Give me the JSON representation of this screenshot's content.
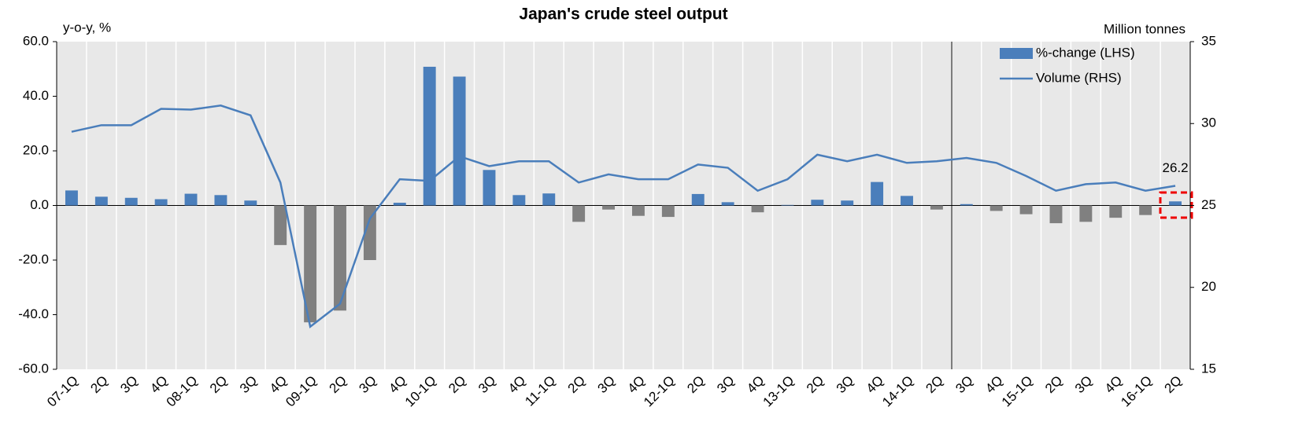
{
  "chart_data": {
    "type": "bar_line",
    "title": "Japan's crude steel output",
    "y_label": "y-o-y, %",
    "y2_label": "Million tonnes",
    "categories": [
      "07-1Q",
      "2Q",
      "3Q",
      "4Q",
      "08-1Q",
      "2Q",
      "3Q",
      "4Q",
      "09-1Q",
      "2Q",
      "3Q",
      "4Q",
      "10-1Q",
      "2Q",
      "3Q",
      "4Q",
      "11-1Q",
      "2Q",
      "3Q",
      "4Q",
      "12-1Q",
      "2Q",
      "3Q",
      "4Q",
      "13-1Q",
      "2Q",
      "3Q",
      "4Q",
      "14-1Q",
      "2Q",
      "3Q",
      "4Q",
      "15-1Q",
      "2Q",
      "3Q",
      "4Q",
      "16-1Q",
      "2Q"
    ],
    "series": [
      {
        "name": "%-change (LHS)",
        "type": "bar",
        "color": "#4a7ebb",
        "negative_color": "#808080",
        "values": [
          5.5,
          3.2,
          2.8,
          2.3,
          4.3,
          3.8,
          1.8,
          -14.5,
          -42.8,
          -38.5,
          -20.0,
          1.0,
          50.8,
          47.2,
          13.0,
          3.8,
          4.4,
          -6.0,
          -1.5,
          -3.8,
          -4.2,
          4.2,
          1.2,
          -2.5,
          0.2,
          2.1,
          1.8,
          8.6,
          3.5,
          -1.5,
          0.5,
          -2.0,
          -3.2,
          -6.5,
          -6.0,
          -4.5,
          -3.5,
          1.5
        ]
      },
      {
        "name": "Volume (RHS)",
        "type": "line",
        "axis": "y2",
        "color": "#4a7ebb",
        "values": [
          29.5,
          29.9,
          29.9,
          30.9,
          30.85,
          31.1,
          30.5,
          26.4,
          17.6,
          19.0,
          24.2,
          26.6,
          26.5,
          28.0,
          27.4,
          27.7,
          27.7,
          26.4,
          26.9,
          26.6,
          26.6,
          27.5,
          27.3,
          25.9,
          26.6,
          28.1,
          27.7,
          28.1,
          27.6,
          27.7,
          27.9,
          27.6,
          26.8,
          25.9,
          26.3,
          26.4,
          25.9,
          26.2
        ]
      }
    ],
    "ylim": [
      -60,
      60
    ],
    "yticks": [
      {
        "value": -60,
        "label": "-60.0"
      },
      {
        "value": -40,
        "label": "-40.0"
      },
      {
        "value": -20,
        "label": "-20.0"
      },
      {
        "value": 0,
        "label": "0.0"
      },
      {
        "value": 20,
        "label": "20.0"
      },
      {
        "value": 40,
        "label": "40.0"
      },
      {
        "value": 60,
        "label": "60.0"
      }
    ],
    "y2lim": [
      15,
      35
    ],
    "y2ticks": [
      15,
      20,
      25,
      30,
      35
    ],
    "annotation": "26.2",
    "legend": "upper right",
    "grid": false
  }
}
